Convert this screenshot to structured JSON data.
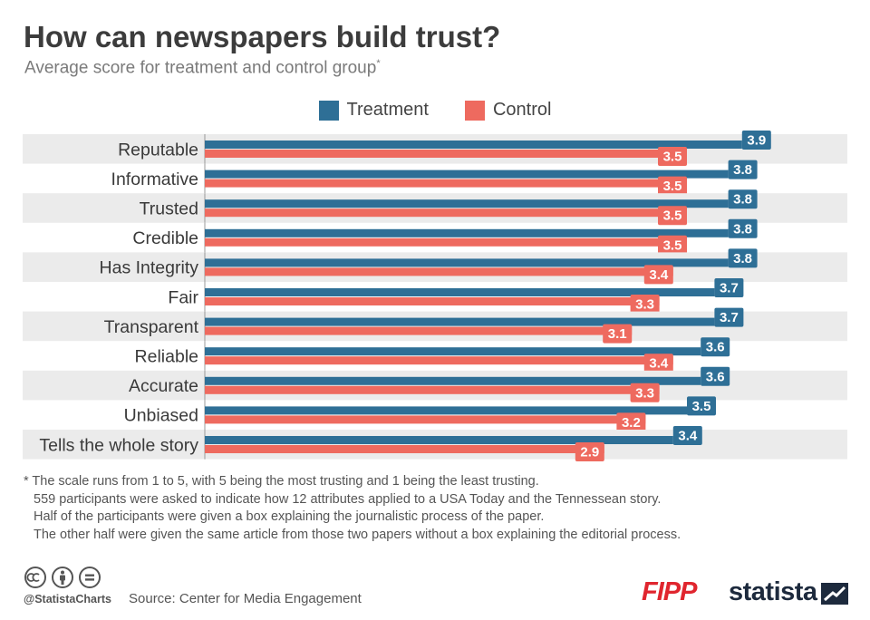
{
  "title": "How can newspapers build trust?",
  "subtitle": "Average score for treatment and control group",
  "subtitle_marker": "*",
  "legend": [
    {
      "label": "Treatment",
      "color": "#2e6f96"
    },
    {
      "label": "Control",
      "color": "#ee6a5f"
    }
  ],
  "chart_data": {
    "type": "bar",
    "orientation": "horizontal",
    "categories": [
      "Reputable",
      "Informative",
      "Trusted",
      "Credible",
      "Has Integrity",
      "Fair",
      "Transparent",
      "Reliable",
      "Accurate",
      "Unbiased",
      "Tells the whole story"
    ],
    "series": [
      {
        "name": "Treatment",
        "color": "#2e6f96",
        "values": [
          3.9,
          3.8,
          3.8,
          3.8,
          3.8,
          3.7,
          3.7,
          3.6,
          3.6,
          3.5,
          3.4
        ]
      },
      {
        "name": "Control",
        "color": "#ee6a5f",
        "values": [
          3.5,
          3.5,
          3.5,
          3.5,
          3.4,
          3.3,
          3.1,
          3.4,
          3.3,
          3.2,
          2.9
        ]
      }
    ],
    "xlim": [
      0,
      4.3
    ],
    "data_labels": true,
    "row_banding": true
  },
  "footnote": {
    "lines": [
      "* The scale runs from 1 to 5, with 5 being the most trusting and 1 being the least trusting.",
      "559 participants were asked to indicate how 12 attributes applied to a USA Today and the Tennessean story.",
      "Half of the participants were given a box explaining the journalistic process of the paper.",
      "The other half were given the same article from those two papers without a box explaining the editorial process."
    ]
  },
  "footer": {
    "handle": "@StatistaCharts",
    "source": "Source: Center for Media Engagement",
    "logo_fipp": "FIPP",
    "logo_statista": "statista",
    "icons": [
      "creative-commons-icon",
      "attribution-icon",
      "no-derivatives-icon"
    ]
  }
}
